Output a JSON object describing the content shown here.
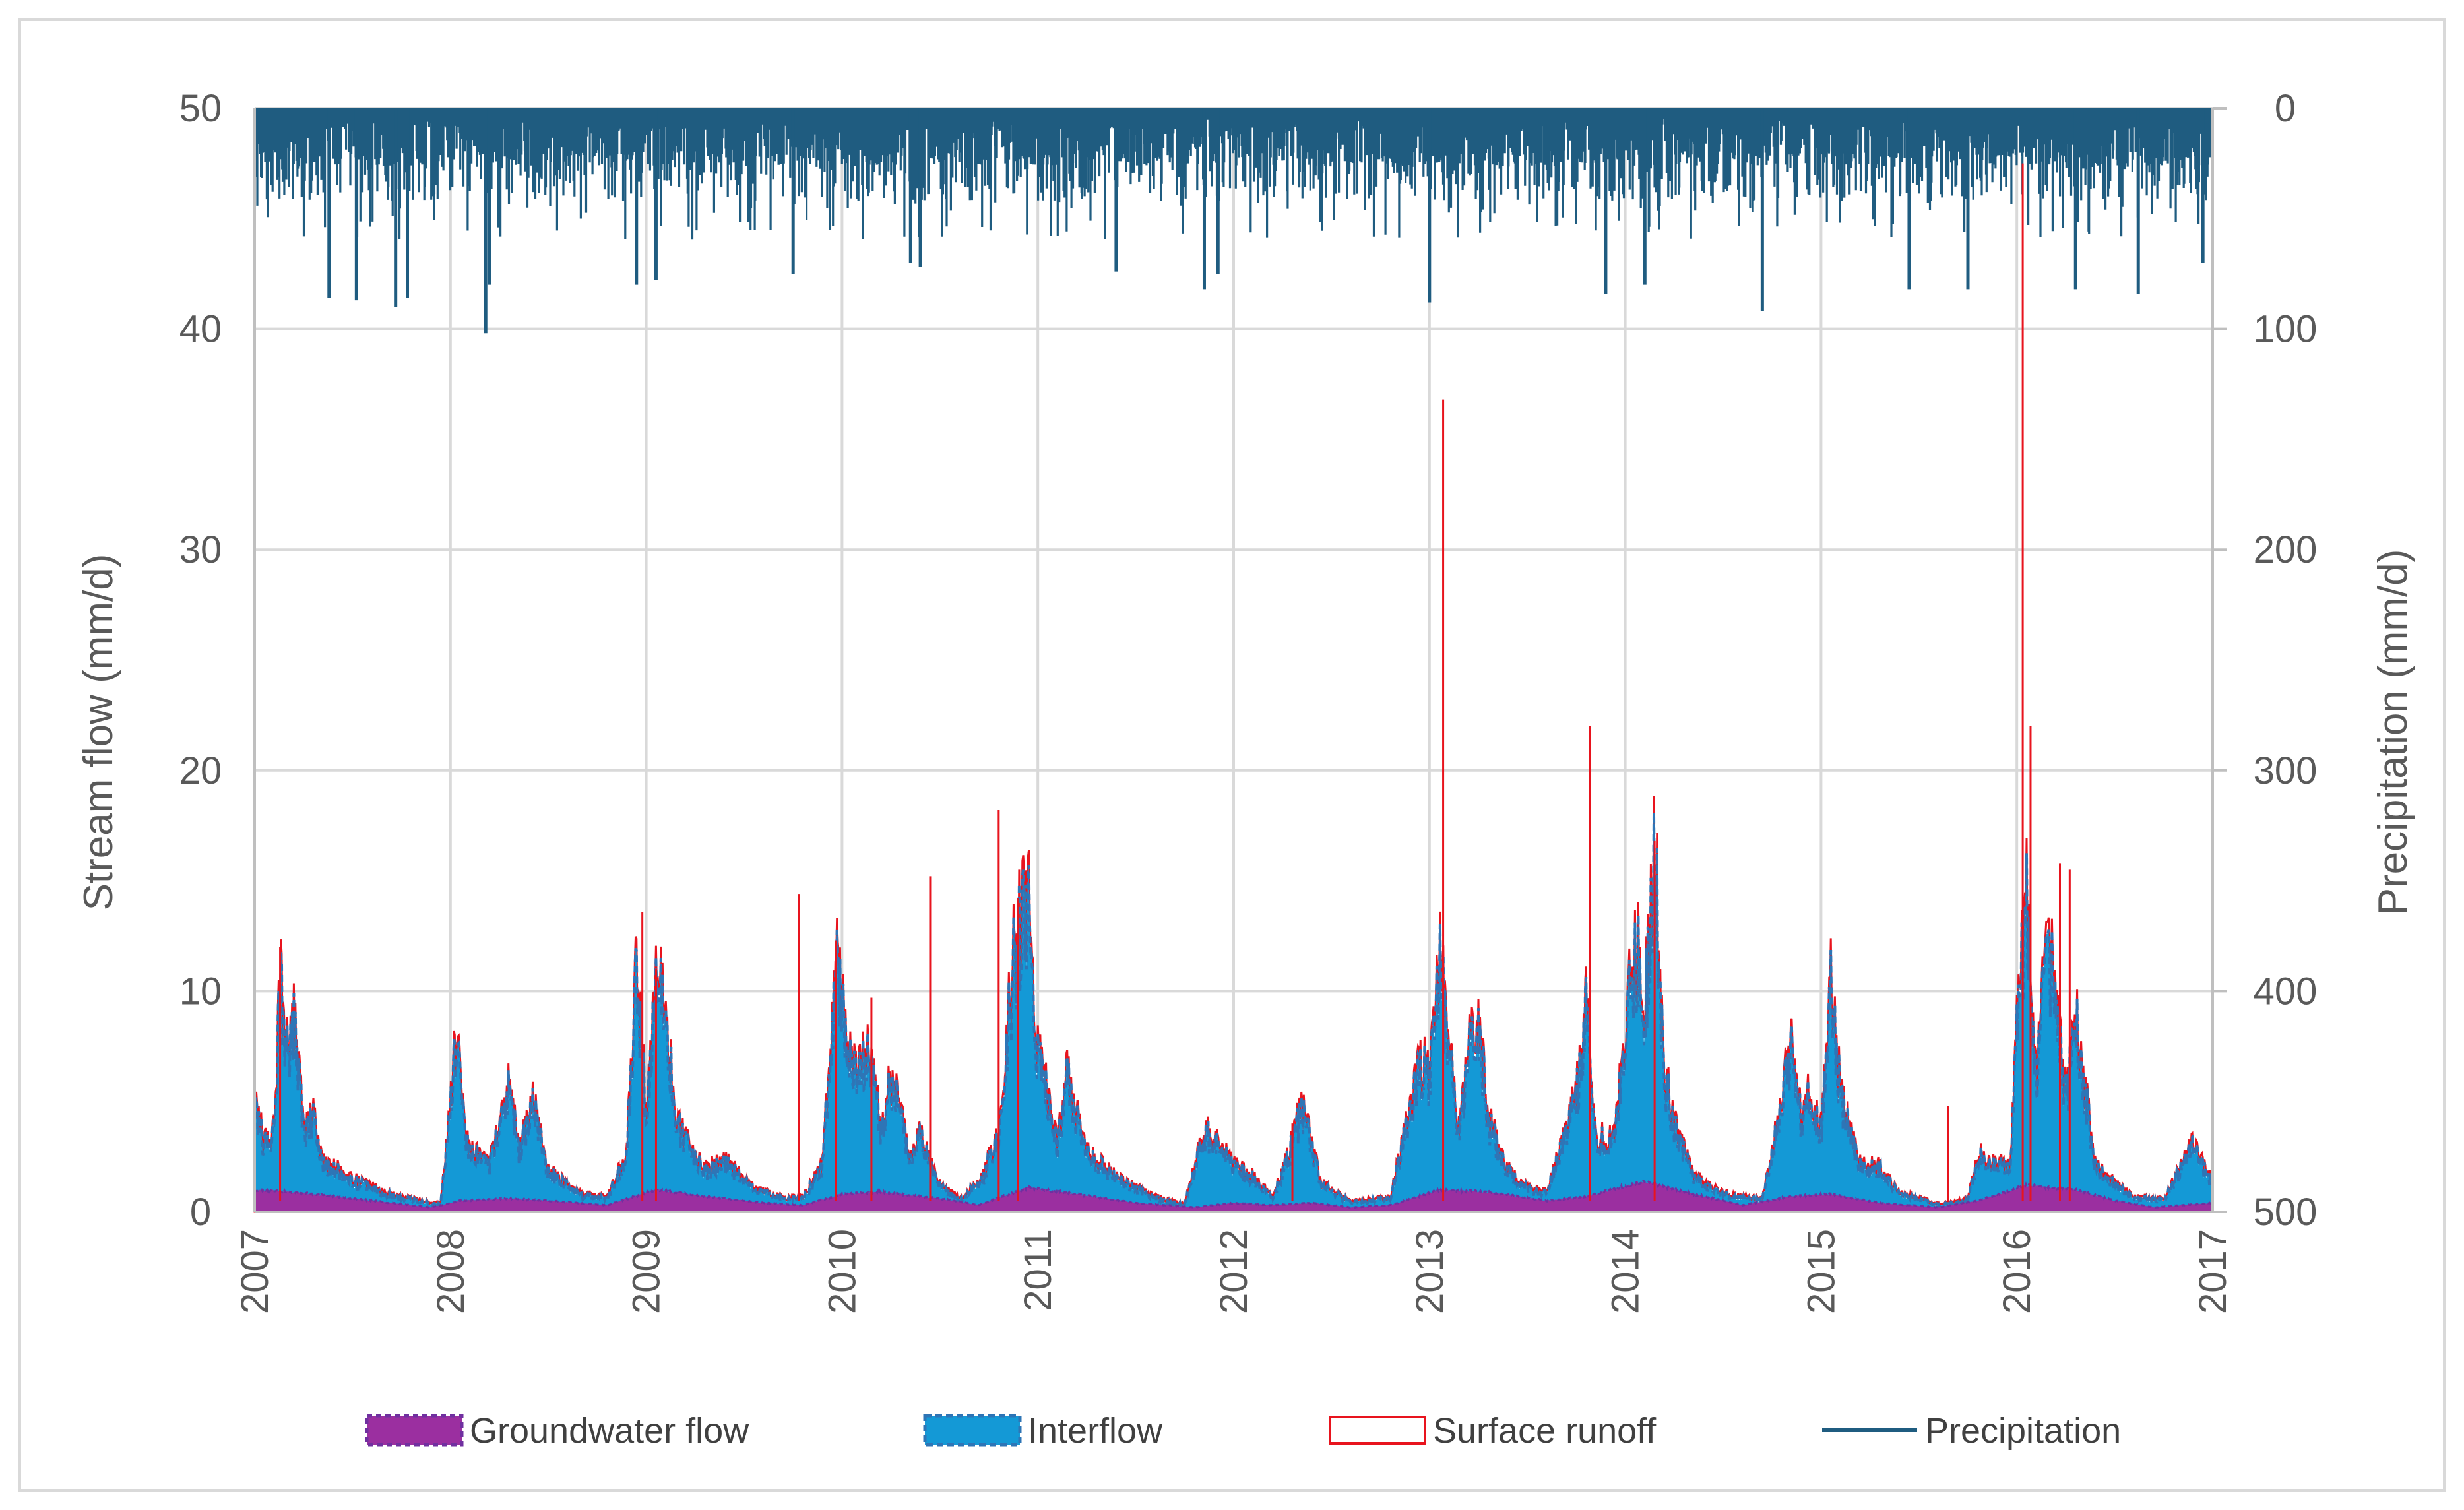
{
  "chart_data": {
    "type": "area",
    "title": "",
    "xlabel": "",
    "ylabel": "Stream flow (mm/d)",
    "y2label": "Precipitation (mm/d)",
    "xlim": [
      2007,
      2017
    ],
    "ylim": [
      0,
      50
    ],
    "y2lim": [
      500,
      0
    ],
    "y2_inverted": true,
    "grid": true,
    "legend_position": "bottom",
    "x_ticks": [
      "2007",
      "2008",
      "2009",
      "2010",
      "2011",
      "2012",
      "2013",
      "2014",
      "2015",
      "2016",
      "2017"
    ],
    "y_ticks": [
      "0",
      "10",
      "20",
      "30",
      "40",
      "50"
    ],
    "y2_ticks": [
      "0",
      "100",
      "200",
      "300",
      "400",
      "500"
    ],
    "series": [
      {
        "name": "Groundwater flow",
        "type": "area",
        "color": "#9B2FA0",
        "border": "#7030A0",
        "points": [
          [
            2007.0,
            1.0
          ],
          [
            2007.2,
            0.9
          ],
          [
            2007.5,
            0.6
          ],
          [
            2007.9,
            0.2
          ],
          [
            2008.05,
            0.5
          ],
          [
            2008.3,
            0.6
          ],
          [
            2008.5,
            0.5
          ],
          [
            2008.8,
            0.3
          ],
          [
            2009.05,
            1.0
          ],
          [
            2009.3,
            0.7
          ],
          [
            2009.6,
            0.4
          ],
          [
            2009.8,
            0.3
          ],
          [
            2010.0,
            0.8
          ],
          [
            2010.2,
            0.9
          ],
          [
            2010.5,
            0.6
          ],
          [
            2010.7,
            0.3
          ],
          [
            2010.95,
            1.1
          ],
          [
            2011.2,
            0.8
          ],
          [
            2011.5,
            0.4
          ],
          [
            2011.8,
            0.2
          ],
          [
            2012.0,
            0.4
          ],
          [
            2012.2,
            0.3
          ],
          [
            2012.4,
            0.4
          ],
          [
            2012.6,
            0.2
          ],
          [
            2012.8,
            0.3
          ],
          [
            2013.05,
            1.0
          ],
          [
            2013.3,
            0.9
          ],
          [
            2013.6,
            0.5
          ],
          [
            2013.8,
            0.7
          ],
          [
            2014.1,
            1.4
          ],
          [
            2014.35,
            0.8
          ],
          [
            2014.6,
            0.3
          ],
          [
            2014.85,
            0.7
          ],
          [
            2015.05,
            0.8
          ],
          [
            2015.3,
            0.4
          ],
          [
            2015.6,
            0.2
          ],
          [
            2015.8,
            0.5
          ],
          [
            2016.05,
            1.2
          ],
          [
            2016.3,
            1.0
          ],
          [
            2016.5,
            0.5
          ],
          [
            2016.7,
            0.2
          ],
          [
            2017.0,
            0.4
          ]
        ]
      },
      {
        "name": "Interflow",
        "type": "area",
        "color": "#1499D6",
        "border": "#2E75B6",
        "points": [
          [
            2007.0,
            4.6
          ],
          [
            2007.05,
            3.0
          ],
          [
            2007.1,
            3.4
          ],
          [
            2007.13,
            10.2
          ],
          [
            2007.17,
            7.2
          ],
          [
            2007.2,
            8.8
          ],
          [
            2007.25,
            3.5
          ],
          [
            2007.3,
            4.2
          ],
          [
            2007.35,
            2.2
          ],
          [
            2007.5,
            1.4
          ],
          [
            2007.7,
            0.7
          ],
          [
            2007.95,
            0.3
          ],
          [
            2008.03,
            7.6
          ],
          [
            2008.08,
            3.0
          ],
          [
            2008.2,
            2.0
          ],
          [
            2008.3,
            5.9
          ],
          [
            2008.35,
            2.5
          ],
          [
            2008.42,
            5.1
          ],
          [
            2008.5,
            1.8
          ],
          [
            2008.65,
            0.8
          ],
          [
            2008.8,
            0.6
          ],
          [
            2008.9,
            2.5
          ],
          [
            2008.95,
            11.2
          ],
          [
            2009.0,
            4.2
          ],
          [
            2009.05,
            10.4
          ],
          [
            2009.1,
            9.0
          ],
          [
            2009.15,
            4.0
          ],
          [
            2009.3,
            1.8
          ],
          [
            2009.4,
            2.2
          ],
          [
            2009.55,
            1.0
          ],
          [
            2009.7,
            0.6
          ],
          [
            2009.8,
            0.6
          ],
          [
            2009.9,
            2.0
          ],
          [
            2009.97,
            11.2
          ],
          [
            2010.05,
            6.0
          ],
          [
            2010.1,
            7.0
          ],
          [
            2010.15,
            6.5
          ],
          [
            2010.2,
            3.5
          ],
          [
            2010.25,
            6.0
          ],
          [
            2010.35,
            2.2
          ],
          [
            2010.4,
            3.5
          ],
          [
            2010.5,
            1.2
          ],
          [
            2010.6,
            0.5
          ],
          [
            2010.72,
            1.5
          ],
          [
            2010.8,
            3.5
          ],
          [
            2010.88,
            11.5
          ],
          [
            2010.95,
            13.5
          ],
          [
            2011.0,
            7.0
          ],
          [
            2011.05,
            5.0
          ],
          [
            2011.1,
            3.0
          ],
          [
            2011.15,
            6.0
          ],
          [
            2011.25,
            2.5
          ],
          [
            2011.4,
            1.5
          ],
          [
            2011.6,
            0.6
          ],
          [
            2011.75,
            0.3
          ],
          [
            2011.85,
            3.5
          ],
          [
            2011.95,
            3.0
          ],
          [
            2012.0,
            2.0
          ],
          [
            2012.1,
            1.5
          ],
          [
            2012.2,
            0.6
          ],
          [
            2012.28,
            2.5
          ],
          [
            2012.35,
            4.6
          ],
          [
            2012.45,
            1.2
          ],
          [
            2012.6,
            0.4
          ],
          [
            2012.8,
            0.6
          ],
          [
            2012.9,
            4.5
          ],
          [
            2012.95,
            6.5
          ],
          [
            2013.0,
            6.0
          ],
          [
            2013.05,
            11.5
          ],
          [
            2013.1,
            7.0
          ],
          [
            2013.15,
            3.5
          ],
          [
            2013.2,
            7.0
          ],
          [
            2013.25,
            8.5
          ],
          [
            2013.3,
            4.0
          ],
          [
            2013.4,
            1.8
          ],
          [
            2013.5,
            1.0
          ],
          [
            2013.6,
            0.8
          ],
          [
            2013.75,
            5.0
          ],
          [
            2013.8,
            9.2
          ],
          [
            2013.85,
            3.0
          ],
          [
            2013.95,
            3.5
          ],
          [
            2014.0,
            8.0
          ],
          [
            2014.05,
            12.0
          ],
          [
            2014.1,
            9.0
          ],
          [
            2014.15,
            16.0
          ],
          [
            2014.2,
            6.0
          ],
          [
            2014.25,
            4.0
          ],
          [
            2014.35,
            1.5
          ],
          [
            2014.5,
            0.8
          ],
          [
            2014.7,
            0.5
          ],
          [
            2014.85,
            7.3
          ],
          [
            2014.9,
            4.0
          ],
          [
            2014.95,
            5.3
          ],
          [
            2015.0,
            3.5
          ],
          [
            2015.05,
            10.2
          ],
          [
            2015.1,
            5.0
          ],
          [
            2015.2,
            2.0
          ],
          [
            2015.3,
            1.9
          ],
          [
            2015.4,
            0.8
          ],
          [
            2015.6,
            0.3
          ],
          [
            2015.75,
            0.5
          ],
          [
            2015.8,
            2.5
          ],
          [
            2015.9,
            2.0
          ],
          [
            2015.97,
            2.3
          ],
          [
            2016.0,
            8.0
          ],
          [
            2016.05,
            14.0
          ],
          [
            2016.1,
            5.0
          ],
          [
            2016.15,
            12.5
          ],
          [
            2016.2,
            9.0
          ],
          [
            2016.25,
            5.0
          ],
          [
            2016.3,
            8.5
          ],
          [
            2016.4,
            2.0
          ],
          [
            2016.5,
            1.2
          ],
          [
            2016.6,
            0.6
          ],
          [
            2016.75,
            0.5
          ],
          [
            2016.9,
            3.0
          ],
          [
            2016.95,
            2.0
          ],
          [
            2017.0,
            1.3
          ]
        ]
      },
      {
        "name": "Surface runoff",
        "type": "spikes",
        "color": "#E8141E",
        "points": [
          [
            2007.13,
            12.0
          ],
          [
            2008.98,
            13.6
          ],
          [
            2009.05,
            11.0
          ],
          [
            2009.78,
            14.4
          ],
          [
            2009.97,
            12.3
          ],
          [
            2010.15,
            9.7
          ],
          [
            2010.45,
            15.2
          ],
          [
            2010.8,
            18.2
          ],
          [
            2010.9,
            14.2
          ],
          [
            2012.3,
            4.0
          ],
          [
            2013.07,
            36.8
          ],
          [
            2013.82,
            22.0
          ],
          [
            2014.15,
            16.8
          ],
          [
            2015.65,
            4.8
          ],
          [
            2016.03,
            47.5
          ],
          [
            2016.07,
            22.0
          ],
          [
            2016.22,
            15.8
          ],
          [
            2016.27,
            15.5
          ]
        ]
      },
      {
        "name": "Precipitation",
        "type": "bars-inverted",
        "color": "#1F5C80",
        "axis": "y2",
        "peaks": [
          [
            2007.38,
            86
          ],
          [
            2007.52,
            87
          ],
          [
            2007.72,
            90
          ],
          [
            2007.78,
            86
          ],
          [
            2008.18,
            102
          ],
          [
            2008.2,
            80
          ],
          [
            2008.95,
            80
          ],
          [
            2009.05,
            78
          ],
          [
            2009.75,
            75
          ],
          [
            2010.35,
            70
          ],
          [
            2010.4,
            72
          ],
          [
            2011.4,
            74
          ],
          [
            2011.85,
            82
          ],
          [
            2011.92,
            75
          ],
          [
            2013.0,
            88
          ],
          [
            2013.9,
            84
          ],
          [
            2014.1,
            80
          ],
          [
            2014.7,
            92
          ],
          [
            2015.45,
            82
          ],
          [
            2015.75,
            82
          ],
          [
            2016.3,
            82
          ],
          [
            2016.62,
            84
          ],
          [
            2016.95,
            70
          ]
        ]
      }
    ]
  },
  "legend": {
    "groundwater": "Groundwater flow",
    "interflow": "Interflow",
    "surface": "Surface runoff",
    "precip": "Precipitation"
  },
  "colors": {
    "groundwater": "#9B2FA0",
    "interflow": "#1499D6",
    "surface": "#E8141E",
    "precip": "#1F5C80",
    "grid": "#d9d9d9"
  }
}
